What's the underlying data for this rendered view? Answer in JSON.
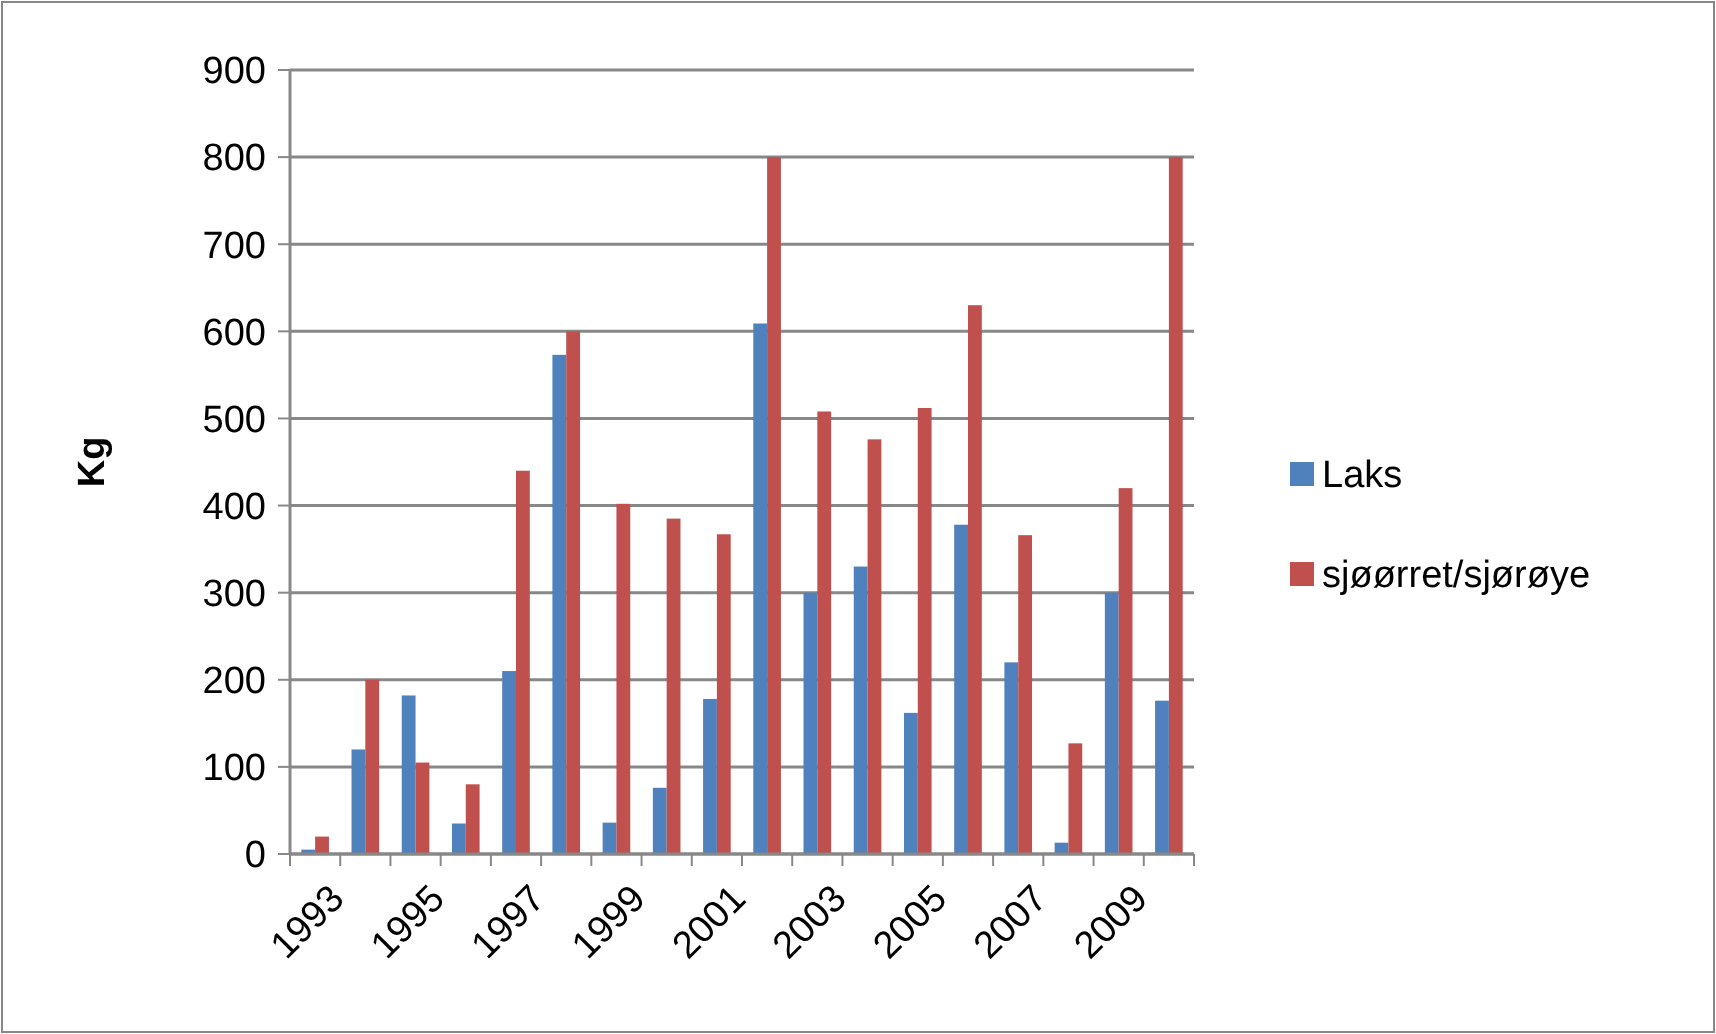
{
  "chart_data": {
    "type": "bar",
    "ylabel": "Kg",
    "categories": [
      "1993",
      null,
      "1995",
      null,
      "1997",
      null,
      "1999",
      null,
      "2001",
      null,
      "2003",
      null,
      "2005",
      null,
      "2007",
      null,
      "2009",
      null
    ],
    "series": [
      {
        "name": "Laks",
        "color": "#4f81bd",
        "values": [
          5,
          120,
          182,
          35,
          210,
          573,
          36,
          76,
          178,
          609,
          300,
          330,
          162,
          378,
          220,
          13,
          300,
          176
        ]
      },
      {
        "name": "sjøørret/sjørøye",
        "color": "#c0504d",
        "values": [
          20,
          200,
          105,
          80,
          440,
          600,
          402,
          385,
          367,
          800,
          508,
          476,
          512,
          630,
          366,
          127,
          420,
          800
        ]
      }
    ],
    "ylim": [
      0,
      900
    ],
    "yticks": [
      0,
      100,
      200,
      300,
      400,
      500,
      600,
      700,
      800,
      900
    ],
    "grid": "y",
    "legend": "right"
  }
}
